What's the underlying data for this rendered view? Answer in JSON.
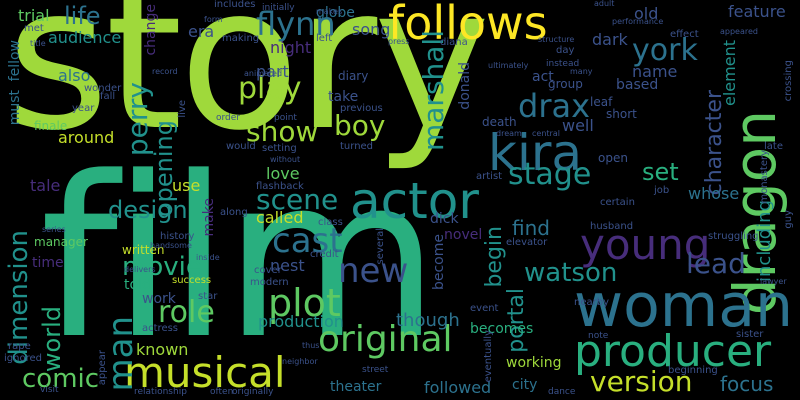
{
  "words": [
    "story",
    "film",
    "follows",
    "dragon",
    "woman",
    "actor",
    "kira",
    "producer",
    "young",
    "musical",
    "plot",
    "original",
    "cast",
    "new",
    "drax",
    "flynn",
    "york",
    "play",
    "boy",
    "show",
    "scene",
    "stage",
    "perry",
    "marshall",
    "comic",
    "version",
    "lead",
    "man",
    "role",
    "movie",
    "watson",
    "dimension",
    "opening",
    "world",
    "design",
    "set",
    "character",
    "begin",
    "portal",
    "life",
    "including",
    "find",
    "focus",
    "trial",
    "audience",
    "globe",
    "song",
    "element",
    "feature",
    "old",
    "name",
    "based",
    "act",
    "group",
    "dark",
    "night",
    "part",
    "take",
    "donald",
    "also",
    "must",
    "fellow",
    "around",
    "well",
    "whose",
    "love",
    "called",
    "nest",
    "though",
    "production",
    "becomes",
    "theater",
    "followed",
    "city",
    "working",
    "known",
    "told",
    "work",
    "time",
    "tale",
    "use",
    "make",
    "dick",
    "novel",
    "become",
    "era",
    "change",
    "diary",
    "previous",
    "leaf",
    "short",
    "death",
    "finale",
    "manager",
    "written",
    "history",
    "success",
    "actress",
    "cover",
    "modern",
    "neighbor",
    "sister",
    "husband",
    "open",
    "artist",
    "elevator",
    "struggling",
    "monastery",
    "crossing",
    "late",
    "job",
    "certain",
    "flashback",
    "along",
    "credit",
    "class",
    "several",
    "event",
    "eventually",
    "beginning",
    "nearby",
    "ignored",
    "rape",
    "visit",
    "relationship",
    "often",
    "dance",
    "street",
    "year",
    "fall",
    "wonder",
    "setting",
    "turned",
    "without",
    "makes",
    "initially",
    "includes",
    "left",
    "press",
    "making",
    "record",
    "order",
    "point",
    "would",
    "guy",
    "lawyer",
    "star",
    "thus",
    "series",
    "originally",
    "appeared",
    "instead",
    "structure",
    "ultimately",
    "day",
    "many",
    "effect",
    "adult",
    "performance",
    "title",
    "met",
    "form",
    "animated",
    "delivers",
    "handsome",
    "inside",
    "live",
    "dream",
    "central",
    "appear",
    "note",
    "diana"
  ],
  "colors": {
    "background": "#000000",
    "lime": "#9fd93b",
    "yellow_green": "#c5df2a",
    "yellow": "#fde725",
    "green": "#5ec962",
    "teal": "#21918c",
    "sea_green": "#29af7f",
    "steel_blue": "#2c728e",
    "slate_blue": "#3b528b",
    "indigo": "#472d7b",
    "deep_purple": "#440154"
  }
}
